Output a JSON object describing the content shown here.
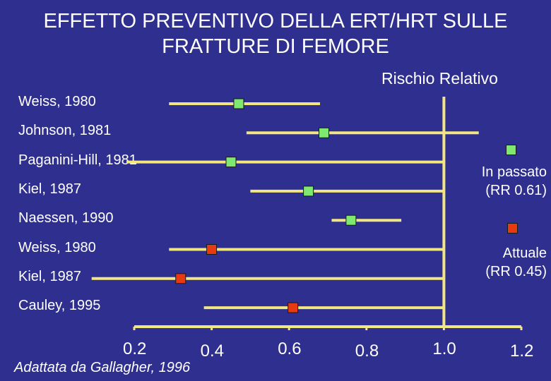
{
  "title_line1": "EFFETTO PREVENTIVO DELLA ERT/HRT SULLE",
  "title_line2": "FRATTURE DI FEMORE",
  "source": "Adattata da Gallagher, 1996",
  "colors": {
    "background": "#2e2f8e",
    "line": "#f2e680",
    "past": "#7fe870",
    "current": "#e83a12",
    "text": "#ffffff"
  },
  "chart_data": {
    "type": "forest",
    "ylabel": "Rischio Relativo",
    "x_ticks": [
      "0.2",
      "0.4",
      "0.6",
      "0.8",
      "1.0",
      "1.2"
    ],
    "xlim": [
      0.2,
      1.2
    ],
    "reference_line": 1.0,
    "legend": [
      {
        "key": "past",
        "line1": "In passato",
        "line2": "(RR 0.61)"
      },
      {
        "key": "current",
        "line1": "Attuale",
        "line2": "(RR 0.45)"
      }
    ],
    "studies": [
      {
        "label": "Weiss, 1980",
        "group": "past",
        "rr": 0.47,
        "low": 0.29,
        "high": 0.68
      },
      {
        "label": "Johnson, 1981",
        "group": "past",
        "rr": 0.69,
        "low": 0.49,
        "high": 1.09
      },
      {
        "label": "Paganini-Hill, 1981",
        "group": "past",
        "rr": 0.45,
        "low": 0.18,
        "high": 1.0
      },
      {
        "label": "Kiel, 1987",
        "group": "past",
        "rr": 0.65,
        "low": 0.5,
        "high": 1.0
      },
      {
        "label": "Naessen, 1990",
        "group": "past",
        "rr": 0.76,
        "low": 0.71,
        "high": 0.89
      },
      {
        "label": "Weiss, 1980",
        "group": "current",
        "rr": 0.4,
        "low": 0.29,
        "high": 1.0
      },
      {
        "label": "Kiel, 1987",
        "group": "current",
        "rr": 0.32,
        "low": 0.09,
        "high": 1.0
      },
      {
        "label": "Cauley, 1995",
        "group": "current",
        "rr": 0.61,
        "low": 0.38,
        "high": 1.0
      }
    ]
  }
}
